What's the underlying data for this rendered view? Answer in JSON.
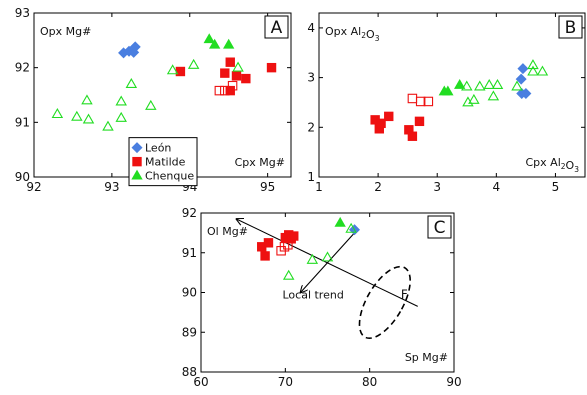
{
  "chart_data": [
    {
      "type": "scatter",
      "panel_label": "A",
      "xlabel": "Cpx Mg#",
      "ylabel": "Opx Mg#",
      "xlim": [
        92,
        95.3
      ],
      "ylim": [
        90,
        93
      ],
      "xticks": [
        92,
        93,
        94,
        95
      ],
      "yticks": [
        90,
        91,
        92,
        93
      ],
      "grid": false,
      "legend": {
        "placement": "bottom-center",
        "entries": [
          {
            "name": "León",
            "marker": "diamond-filled",
            "color": "#4a7fe0"
          },
          {
            "name": "Matilde",
            "marker": "square-filled",
            "color": "#ee1111"
          },
          {
            "name": "Chenque",
            "marker": "triangle-filled",
            "color": "#22dd22"
          }
        ]
      },
      "series": [
        {
          "name": "León",
          "marker": "diamond-filled",
          "color": "#4a7fe0",
          "points": [
            [
              93.15,
              92.27
            ],
            [
              93.22,
              92.3
            ],
            [
              93.28,
              92.28
            ],
            [
              93.3,
              92.38
            ]
          ]
        },
        {
          "name": "Matilde",
          "marker": "square-filled",
          "color": "#ee1111",
          "points": [
            [
              93.88,
              91.93
            ],
            [
              94.45,
              91.9
            ],
            [
              94.52,
              92.1
            ],
            [
              94.6,
              91.85
            ],
            [
              94.72,
              91.8
            ],
            [
              95.05,
              92.0
            ],
            [
              94.52,
              91.58
            ]
          ]
        },
        {
          "name": "Matilde",
          "marker": "square-open",
          "color": "#ee1111",
          "points": [
            [
              94.38,
              91.58
            ],
            [
              94.45,
              91.58
            ],
            [
              94.55,
              91.67
            ]
          ]
        },
        {
          "name": "Chenque",
          "marker": "triangle-filled",
          "color": "#22dd22",
          "points": [
            [
              94.25,
              92.52
            ],
            [
              94.32,
              92.42
            ],
            [
              94.5,
              92.42
            ]
          ]
        },
        {
          "name": "Chenque",
          "marker": "triangle-open",
          "color": "#22dd22",
          "points": [
            [
              92.3,
              91.15
            ],
            [
              92.55,
              91.1
            ],
            [
              92.68,
              91.4
            ],
            [
              92.7,
              91.05
            ],
            [
              92.95,
              90.92
            ],
            [
              93.12,
              91.38
            ],
            [
              93.12,
              91.08
            ],
            [
              93.25,
              91.7
            ],
            [
              93.5,
              91.3
            ],
            [
              93.78,
              91.95
            ],
            [
              94.05,
              92.05
            ],
            [
              94.62,
              92.0
            ]
          ]
        }
      ]
    },
    {
      "type": "scatter",
      "panel_label": "B",
      "xlabel": "Cpx Al2O3",
      "ylabel": "Opx Al2O3",
      "xlim": [
        1,
        5.5
      ],
      "ylim": [
        1,
        4.3
      ],
      "xticks": [
        1,
        2,
        3,
        4,
        5
      ],
      "yticks": [
        1,
        2,
        3,
        4
      ],
      "grid": false,
      "series": [
        {
          "name": "León",
          "marker": "diamond-filled",
          "color": "#4a7fe0",
          "points": [
            [
              4.42,
              2.97
            ],
            [
              4.45,
              3.18
            ],
            [
              4.43,
              2.68
            ],
            [
              4.5,
              2.68
            ]
          ]
        },
        {
          "name": "Matilde",
          "marker": "square-filled",
          "color": "#ee1111",
          "points": [
            [
              1.95,
              2.15
            ],
            [
              2.02,
              1.97
            ],
            [
              2.05,
              2.08
            ],
            [
              2.18,
              2.22
            ],
            [
              2.52,
              1.95
            ],
            [
              2.58,
              1.82
            ],
            [
              2.7,
              2.12
            ]
          ]
        },
        {
          "name": "Matilde",
          "marker": "square-open",
          "color": "#ee1111",
          "points": [
            [
              2.58,
              2.58
            ],
            [
              2.72,
              2.52
            ],
            [
              2.85,
              2.52
            ]
          ]
        },
        {
          "name": "Chenque",
          "marker": "triangle-filled",
          "color": "#22dd22",
          "points": [
            [
              3.12,
              2.72
            ],
            [
              3.18,
              2.72
            ],
            [
              3.38,
              2.85
            ]
          ]
        },
        {
          "name": "Chenque",
          "marker": "triangle-open",
          "color": "#22dd22",
          "points": [
            [
              3.5,
              2.82
            ],
            [
              3.52,
              2.5
            ],
            [
              3.62,
              2.55
            ],
            [
              3.72,
              2.82
            ],
            [
              3.88,
              2.85
            ],
            [
              3.95,
              2.62
            ],
            [
              4.02,
              2.85
            ],
            [
              4.35,
              2.82
            ],
            [
              4.62,
              3.25
            ],
            [
              4.62,
              3.12
            ],
            [
              4.78,
              3.12
            ]
          ]
        }
      ]
    },
    {
      "type": "scatter",
      "panel_label": "C",
      "xlabel": "Sp Mg#",
      "ylabel": "Ol Mg#",
      "xlim": [
        60,
        90
      ],
      "ylim": [
        88,
        92
      ],
      "xticks": [
        60,
        70,
        80,
        90
      ],
      "yticks": [
        88,
        89,
        90,
        91,
        92
      ],
      "grid": false,
      "annotations": {
        "trend_label": "Local trend",
        "line_label": "F"
      },
      "series": [
        {
          "name": "León",
          "marker": "diamond-filled",
          "color": "#4a7fe0",
          "points": [
            [
              78.2,
              91.58
            ]
          ]
        },
        {
          "name": "Matilde",
          "marker": "square-filled",
          "color": "#ee1111",
          "points": [
            [
              67.2,
              91.15
            ],
            [
              67.6,
              90.92
            ],
            [
              68.0,
              91.25
            ],
            [
              70.0,
              91.38
            ],
            [
              70.4,
              91.45
            ],
            [
              70.7,
              91.35
            ],
            [
              71.0,
              91.42
            ]
          ]
        },
        {
          "name": "Matilde",
          "marker": "square-open",
          "color": "#ee1111",
          "points": [
            [
              69.5,
              91.05
            ],
            [
              69.9,
              91.15
            ],
            [
              70.3,
              91.2
            ]
          ]
        },
        {
          "name": "Chenque",
          "marker": "triangle-filled",
          "color": "#22dd22",
          "points": [
            [
              76.5,
              91.75
            ]
          ]
        },
        {
          "name": "Chenque",
          "marker": "triangle-open",
          "color": "#22dd22",
          "points": [
            [
              70.4,
              90.42
            ],
            [
              73.2,
              90.82
            ],
            [
              75.0,
              90.88
            ],
            [
              77.8,
              91.6
            ]
          ]
        }
      ]
    }
  ]
}
